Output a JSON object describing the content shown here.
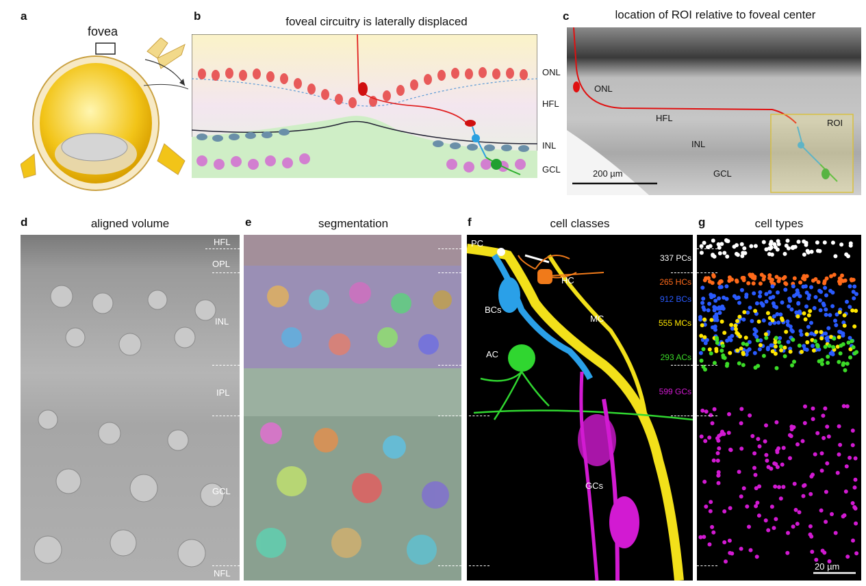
{
  "panels": {
    "a": {
      "letter": "a",
      "label": "fovea"
    },
    "b": {
      "letter": "b",
      "title": "foveal circuitry is laterally displaced",
      "layers": [
        "ONL",
        "HFL",
        "INL",
        "GCL"
      ]
    },
    "c": {
      "letter": "c",
      "title": "location of ROI relative to foveal center",
      "layers": [
        "ONL",
        "HFL",
        "INL",
        "GCL"
      ],
      "roi": "ROI",
      "scale": "200 µm"
    },
    "d": {
      "letter": "d",
      "title": "aligned volume",
      "layers": [
        "HFL",
        "OPL",
        "INL",
        "IPL",
        "GCL",
        "NFL"
      ]
    },
    "e": {
      "letter": "e",
      "title": "segmentation"
    },
    "f": {
      "letter": "f",
      "title": "cell classes",
      "cells": [
        "PC",
        "HC",
        "BCs",
        "MC",
        "AC",
        "GCs"
      ]
    },
    "g": {
      "letter": "g",
      "title": "cell types",
      "scale": "20 µm",
      "counts": [
        {
          "text": "337 PCs",
          "color": "#ffffff"
        },
        {
          "text": "265 HCs",
          "color": "#ff6a1a"
        },
        {
          "text": "912 BCs",
          "color": "#2a5bff"
        },
        {
          "text": "555 MCs",
          "color": "#ffe600"
        },
        {
          "text": "293 ACs",
          "color": "#3cdc28"
        },
        {
          "text": "599 GCs",
          "color": "#d21ad2"
        }
      ]
    }
  }
}
